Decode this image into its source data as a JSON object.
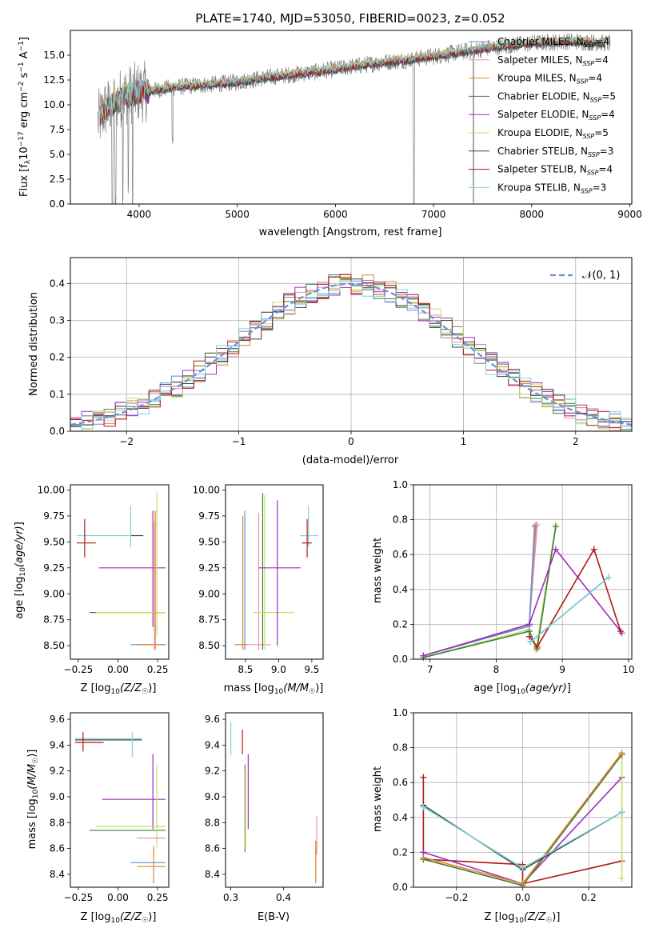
{
  "colors": {
    "chabrier_miles": "#5b8fd6",
    "salpeter_miles": "#f08fb0",
    "kroupa_miles": "#e0842a",
    "chabrier_elodie": "#3d7f3d",
    "salpeter_elodie": "#9f2fb8",
    "kroupa_elodie": "#c8e060",
    "chabrier_stelib": "#404040",
    "salpeter_stelib": "#b01818",
    "kroupa_stelib": "#7fd3d8",
    "raw_spectrum": "#808080",
    "normal_curve": "#6b8fd6"
  },
  "chart_data": [
    {
      "id": "spectrum",
      "type": "line",
      "title": "PLATE=1740, MJD=53050, FIBERID=0023, z=0.052",
      "xlabel": "wavelength [Angstrom, rest frame]",
      "ylabel": "Flux [f_λ10^-17 erg cm^-2 s^-1 A^-1]",
      "xlim": [
        3300,
        9020
      ],
      "ylim": [
        0,
        17.5
      ],
      "xticks": [
        "4000",
        "5000",
        "6000",
        "7000",
        "8000",
        "9000"
      ],
      "yticks": [
        "0.0",
        "2.5",
        "5.0",
        "7.5",
        "10.0",
        "12.5",
        "15.0"
      ],
      "legend_position": "upper-right",
      "legend": [
        "Chabrier MILES, N_SSP=4",
        "Salpeter MILES, N_SSP=4",
        "Kroupa MILES, N_SSP=4",
        "Chabrier ELODIE, N_SSP=5",
        "Salpeter ELODIE, N_SSP=4",
        "Kroupa ELODIE, N_SSP=5",
        "Chabrier STELIB, N_SSP=3",
        "Salpeter STELIB, N_SSP=4",
        "Kroupa STELIB, N_SSP=3"
      ],
      "continuum": {
        "x": [
          3550,
          3650,
          3750,
          3850,
          3950,
          4100,
          4300,
          4500,
          4800,
          5000,
          5200,
          5500,
          5800,
          6000,
          6200,
          6500,
          6800,
          7000,
          7200,
          7400,
          7600,
          7800,
          8000,
          8200,
          8400,
          8600,
          8800
        ],
        "y": [
          7.8,
          9.5,
          10.3,
          10.9,
          11.2,
          11.4,
          11.7,
          11.9,
          12.1,
          12.3,
          12.6,
          13.0,
          13.3,
          13.6,
          13.9,
          14.3,
          14.6,
          14.9,
          15.2,
          15.5,
          15.8,
          16.0,
          16.2,
          16.3,
          16.4,
          16.3,
          16.2
        ]
      },
      "absorption_dips": [
        {
          "x": 3728,
          "depth": 17.0
        },
        {
          "x": 3760,
          "depth": 12.0
        },
        {
          "x": 3835,
          "depth": 9.0
        },
        {
          "x": 3890,
          "depth": 10.0
        },
        {
          "x": 3933,
          "depth": 12.0
        },
        {
          "x": 4340,
          "depth": 5.0
        },
        {
          "x": 6800,
          "depth": 16.0
        },
        {
          "x": 7405,
          "depth": 15.5
        }
      ]
    },
    {
      "id": "residual_distribution",
      "type": "line",
      "xlabel": "(data-model)/error",
      "ylabel": "Normed distribution",
      "xlim": [
        -2.5,
        2.5
      ],
      "ylim": [
        0,
        0.47
      ],
      "xticks": [
        "−2",
        "−1",
        "0",
        "1",
        "2"
      ],
      "yticks": [
        "0.0",
        "0.1",
        "0.2",
        "0.3",
        "0.4"
      ],
      "grid": true,
      "legend_position": "upper-right",
      "legend": [
        "𝒩(0, 1)"
      ],
      "bin_width": 0.1
    },
    {
      "id": "age_vs_Z",
      "type": "scatter",
      "xlabel": "Z [log10(Z/Z☉)]",
      "ylabel": "age  [log10(age/yr)]",
      "xlim": [
        -0.3,
        0.32
      ],
      "ylim": [
        8.37,
        10.05
      ],
      "xticks": [
        "−0.25",
        "0.00",
        "0.25"
      ],
      "yticks": [
        "8.50",
        "8.75",
        "9.00",
        "9.25",
        "9.50",
        "9.75",
        "10.00"
      ],
      "points": [
        {
          "series": "kroupa_stelib",
          "x": -0.26,
          "x_to": 0.08,
          "y": 9.56,
          "y_from": 9.56,
          "y_to": 9.56
        },
        {
          "series": "chabrier_stelib",
          "x": 0.08,
          "x_to": 0.16,
          "y": 9.56,
          "y_from": 9.56,
          "y_to": 9.56
        },
        {
          "series": "kroupa_stelib",
          "x": 0.08,
          "x_to": 0.08,
          "y": 9.56,
          "y_from": 9.45,
          "y_to": 9.85
        },
        {
          "series": "salpeter_stelib",
          "x": -0.26,
          "x_to": -0.14,
          "y": 9.49,
          "y_from": 9.49,
          "y_to": 9.49
        },
        {
          "series": "salpeter_stelib",
          "x": -0.21,
          "x_to": -0.21,
          "y": 9.49,
          "y_from": 9.35,
          "y_to": 9.72
        },
        {
          "series": "salpeter_elodie",
          "x": -0.12,
          "x_to": 0.3,
          "y": 9.25,
          "y_from": 9.25,
          "y_to": 9.25
        },
        {
          "series": "salpeter_elodie",
          "x": 0.22,
          "x_to": 0.22,
          "y": 9.25,
          "y_from": 8.68,
          "y_to": 9.8
        },
        {
          "series": "chabrier_elodie",
          "x": -0.18,
          "x_to": 0.3,
          "y": 8.82,
          "y_from": 8.82,
          "y_to": 8.82
        },
        {
          "series": "kroupa_elodie",
          "x": -0.14,
          "x_to": 0.3,
          "y": 8.82,
          "y_from": 8.82,
          "y_to": 8.82
        },
        {
          "series": "kroupa_elodie",
          "x": 0.245,
          "x_to": 0.245,
          "y": 8.82,
          "y_from": 8.6,
          "y_to": 9.98
        },
        {
          "series": "chabrier_miles",
          "x": 0.08,
          "x_to": 0.3,
          "y": 8.51,
          "y_from": 8.51,
          "y_to": 8.51
        },
        {
          "series": "kroupa_miles",
          "x": 0.12,
          "x_to": 0.3,
          "y": 8.51,
          "y_from": 8.51,
          "y_to": 8.51
        },
        {
          "series": "kroupa_miles",
          "x": 0.235,
          "x_to": 0.235,
          "y": 8.51,
          "y_from": 8.46,
          "y_to": 9.8
        },
        {
          "series": "salpeter_miles",
          "x": 0.23,
          "x_to": 0.23,
          "y": 8.51,
          "y_from": 8.46,
          "y_to": 9.7
        }
      ]
    },
    {
      "id": "age_vs_mass",
      "type": "scatter",
      "xlabel": "mass [log10(M/M☉)]",
      "ylabel": "",
      "xlim": [
        8.2,
        9.67
      ],
      "ylim": [
        8.37,
        10.05
      ],
      "xticks": [
        "8.5",
        "9.0",
        "9.5"
      ],
      "yticks": [
        "8.50",
        "8.75",
        "9.00",
        "9.25",
        "9.50",
        "9.75",
        "10.00"
      ],
      "points": [
        {
          "series": "kroupa_miles",
          "x": 8.46,
          "x_to": 8.46,
          "y": 8.51,
          "y_from": 8.46,
          "y_to": 9.75
        },
        {
          "series": "chabrier_miles",
          "x": 8.49,
          "x_to": 8.49,
          "y": 8.51,
          "y_from": 8.46,
          "y_to": 9.8
        },
        {
          "series": "salpeter_miles",
          "x": 8.34,
          "x_to": 8.88,
          "y": 8.51,
          "y_from": 8.51,
          "y_to": 8.51
        },
        {
          "series": "kroupa_miles",
          "x": 8.34,
          "x_to": 8.52,
          "y": 8.51,
          "y_from": 8.51,
          "y_to": 8.51
        },
        {
          "series": "salpeter_miles",
          "x": 8.7,
          "x_to": 8.7,
          "y": 8.82,
          "y_from": 8.46,
          "y_to": 9.78
        },
        {
          "series": "chabrier_elodie",
          "x": 8.76,
          "x_to": 8.76,
          "y": 8.82,
          "y_from": 8.46,
          "y_to": 9.97
        },
        {
          "series": "kroupa_elodie",
          "x": 8.79,
          "x_to": 8.79,
          "y": 8.82,
          "y_from": 8.46,
          "y_to": 9.95
        },
        {
          "series": "kroupa_elodie",
          "x": 8.62,
          "x_to": 9.23,
          "y": 8.82,
          "y_from": 8.82,
          "y_to": 8.82
        },
        {
          "series": "salpeter_elodie",
          "x": 8.7,
          "x_to": 9.33,
          "y": 9.25,
          "y_from": 9.25,
          "y_to": 9.25
        },
        {
          "series": "salpeter_elodie",
          "x": 8.98,
          "x_to": 8.98,
          "y": 9.25,
          "y_from": 8.5,
          "y_to": 9.9
        },
        {
          "series": "kroupa_stelib",
          "x": 9.32,
          "x_to": 9.6,
          "y": 9.56,
          "y_from": 9.56,
          "y_to": 9.56
        },
        {
          "series": "kroupa_stelib",
          "x": 9.45,
          "x_to": 9.45,
          "y": 9.56,
          "y_from": 9.45,
          "y_to": 9.85
        },
        {
          "series": "salpeter_stelib",
          "x": 9.35,
          "x_to": 9.5,
          "y": 9.49,
          "y_from": 9.49,
          "y_to": 9.49
        },
        {
          "series": "salpeter_stelib",
          "x": 9.43,
          "x_to": 9.43,
          "y": 9.49,
          "y_from": 9.35,
          "y_to": 9.72
        }
      ]
    },
    {
      "id": "massweight_vs_age",
      "type": "line",
      "xlabel": "age  [log10(age/yr)]",
      "ylabel": "mass weight",
      "xlim": [
        6.75,
        10.05
      ],
      "ylim": [
        0,
        1
      ],
      "xticks": [
        "7",
        "8",
        "9",
        "10"
      ],
      "yticks": [
        "0.0",
        "0.2",
        "0.4",
        "0.6",
        "0.8",
        "1.0"
      ],
      "grid": true,
      "series": [
        {
          "color": "kroupa_miles",
          "x": [
            6.9,
            8.5,
            8.6
          ],
          "y": [
            0.02,
            0.2,
            0.77
          ]
        },
        {
          "color": "salpeter_miles",
          "x": [
            6.9,
            8.5,
            8.62
          ],
          "y": [
            0.02,
            0.2,
            0.77
          ]
        },
        {
          "color": "chabrier_miles",
          "x": [
            6.9,
            8.5,
            8.58
          ],
          "y": [
            0.02,
            0.19,
            0.76
          ]
        },
        {
          "color": "kroupa_elodie",
          "x": [
            6.9,
            8.5,
            8.6,
            8.9
          ],
          "y": [
            0.01,
            0.17,
            0.05,
            0.77
          ]
        },
        {
          "color": "chabrier_elodie",
          "x": [
            6.9,
            8.5,
            8.62,
            8.9
          ],
          "y": [
            0.01,
            0.16,
            0.06,
            0.76
          ]
        },
        {
          "color": "salpeter_elodie",
          "x": [
            6.9,
            8.5,
            8.9,
            9.9
          ],
          "y": [
            0.02,
            0.2,
            0.63,
            0.15
          ]
        },
        {
          "color": "salpeter_stelib",
          "x": [
            8.5,
            8.62,
            9.48,
            9.88
          ],
          "y": [
            0.13,
            0.07,
            0.63,
            0.16
          ]
        },
        {
          "color": "chabrier_stelib",
          "x": [
            8.52,
            9.7
          ],
          "y": [
            0.1,
            0.47
          ]
        },
        {
          "color": "kroupa_stelib",
          "x": [
            8.52,
            9.7
          ],
          "y": [
            0.1,
            0.47
          ]
        }
      ]
    },
    {
      "id": "mass_vs_Z",
      "type": "scatter",
      "xlabel": "Z [log10(Z/Z☉)]",
      "ylabel": "mass [log10(M/M☉)]",
      "xlim": [
        -0.3,
        0.32
      ],
      "ylim": [
        8.3,
        9.65
      ],
      "xticks": [
        "−0.25",
        "0.00",
        "0.25"
      ],
      "yticks": [
        "8.4",
        "8.6",
        "8.8",
        "9.0",
        "9.2",
        "9.4",
        "9.6"
      ],
      "points": [
        {
          "series": "kroupa_stelib",
          "x": -0.27,
          "x_to": 0.15,
          "y": 9.45,
          "y_from": 9.45,
          "y_to": 9.45
        },
        {
          "series": "chabrier_stelib",
          "x": -0.27,
          "x_to": 0.15,
          "y": 9.44,
          "y_from": 9.44,
          "y_to": 9.44
        },
        {
          "series": "kroupa_stelib",
          "x": 0.09,
          "x_to": 0.09,
          "y": 9.45,
          "y_from": 9.31,
          "y_to": 9.5
        },
        {
          "series": "salpeter_stelib",
          "x": -0.27,
          "x_to": -0.09,
          "y": 9.42,
          "y_from": 9.42,
          "y_to": 9.42
        },
        {
          "series": "salpeter_stelib",
          "x": -0.22,
          "x_to": -0.22,
          "y": 9.42,
          "y_from": 9.35,
          "y_to": 9.5
        },
        {
          "series": "salpeter_elodie",
          "x": -0.1,
          "x_to": 0.3,
          "y": 8.98,
          "y_from": 8.98,
          "y_to": 8.98
        },
        {
          "series": "salpeter_elodie",
          "x": 0.22,
          "x_to": 0.22,
          "y": 8.98,
          "y_from": 8.75,
          "y_to": 9.33
        },
        {
          "series": "kroupa_elodie",
          "x": -0.14,
          "x_to": 0.3,
          "y": 8.77,
          "y_from": 8.77,
          "y_to": 8.77
        },
        {
          "series": "chabrier_elodie",
          "x": -0.18,
          "x_to": 0.3,
          "y": 8.74,
          "y_from": 8.74,
          "y_to": 8.74
        },
        {
          "series": "kroupa_elodie",
          "x": 0.245,
          "x_to": 0.245,
          "y": 8.77,
          "y_from": 8.6,
          "y_to": 9.25
        },
        {
          "series": "salpeter_miles",
          "x": 0.12,
          "x_to": 0.3,
          "y": 8.68,
          "y_from": 8.68,
          "y_to": 8.68
        },
        {
          "series": "chabrier_miles",
          "x": 0.08,
          "x_to": 0.3,
          "y": 8.49,
          "y_from": 8.49,
          "y_to": 8.49
        },
        {
          "series": "kroupa_miles",
          "x": 0.12,
          "x_to": 0.3,
          "y": 8.46,
          "y_from": 8.46,
          "y_to": 8.46
        },
        {
          "series": "kroupa_miles",
          "x": 0.225,
          "x_to": 0.225,
          "y": 8.46,
          "y_from": 8.33,
          "y_to": 8.62
        }
      ]
    },
    {
      "id": "mass_vs_ebv",
      "type": "scatter",
      "xlabel": "E(B-V)",
      "ylabel": "",
      "xlim": [
        0.29,
        0.475
      ],
      "ylim": [
        8.3,
        9.65
      ],
      "xticks": [
        "0.3",
        "0.4"
      ],
      "yticks": [
        "8.4",
        "8.6",
        "8.8",
        "9.0",
        "9.2",
        "9.4",
        "9.6"
      ],
      "points": [
        {
          "series": "kroupa_stelib",
          "x": 0.3,
          "x_to": 0.3,
          "y": 9.45,
          "y_from": 9.32,
          "y_to": 9.58
        },
        {
          "series": "salpeter_stelib",
          "x": 0.322,
          "x_to": 0.322,
          "y": 9.42,
          "y_from": 9.33,
          "y_to": 9.52
        },
        {
          "series": "salpeter_elodie",
          "x": 0.333,
          "x_to": 0.333,
          "y": 8.98,
          "y_from": 8.75,
          "y_to": 9.33
        },
        {
          "series": "chabrier_elodie",
          "x": 0.327,
          "x_to": 0.327,
          "y": 8.9,
          "y_from": 8.57,
          "y_to": 9.25
        },
        {
          "series": "kroupa_elodie",
          "x": 0.328,
          "x_to": 0.328,
          "y": 8.9,
          "y_from": 8.6,
          "y_to": 9.2
        },
        {
          "series": "kroupa_miles",
          "x": 0.461,
          "x_to": 0.461,
          "y": 8.46,
          "y_from": 8.33,
          "y_to": 8.66
        },
        {
          "series": "salpeter_miles",
          "x": 0.463,
          "x_to": 0.463,
          "y": 8.68,
          "y_from": 8.55,
          "y_to": 8.85
        }
      ]
    },
    {
      "id": "massweight_vs_Z",
      "type": "line",
      "xlabel": "Z [log10(Z/Z☉)]",
      "ylabel": "mass weight",
      "xlim": [
        -0.33,
        0.33
      ],
      "ylim": [
        0,
        1
      ],
      "xticks": [
        "−0.2",
        "0.0",
        "0.2"
      ],
      "yticks": [
        "0.0",
        "0.2",
        "0.4",
        "0.6",
        "0.8",
        "1.0"
      ],
      "grid": true,
      "series": [
        {
          "color": "salpeter_stelib",
          "x": [
            -0.3,
            -0.3,
            -0.3,
            0.0,
            0.0,
            0.3
          ],
          "y": [
            0.63,
            0.2,
            0.16,
            0.13,
            0.02,
            0.15
          ]
        },
        {
          "color": "salpeter_elodie",
          "x": [
            -0.3,
            0.0,
            0.3
          ],
          "y": [
            0.2,
            0.02,
            0.63
          ]
        },
        {
          "color": "kroupa_elodie",
          "x": [
            -0.3,
            0.0,
            0.3,
            0.3
          ],
          "y": [
            0.16,
            0.01,
            0.77,
            0.05
          ]
        },
        {
          "color": "chabrier_elodie",
          "x": [
            -0.3,
            0.0,
            0.3
          ],
          "y": [
            0.16,
            0.01,
            0.76
          ]
        },
        {
          "color": "kroupa_miles",
          "x": [
            -0.3,
            0.0,
            0.3
          ],
          "y": [
            0.17,
            0.02,
            0.77
          ]
        },
        {
          "color": "chabrier_stelib",
          "x": [
            -0.3,
            0.0,
            0.3
          ],
          "y": [
            0.47,
            0.1,
            0.43
          ]
        },
        {
          "color": "kroupa_stelib",
          "x": [
            -0.3,
            0.0,
            0.3
          ],
          "y": [
            0.46,
            0.11,
            0.43
          ]
        }
      ]
    }
  ]
}
